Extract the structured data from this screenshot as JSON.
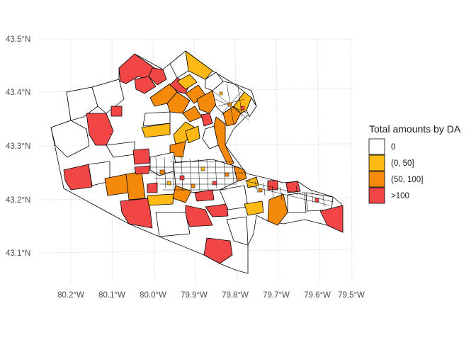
{
  "map": {
    "y_ticks": [
      "43.5°N",
      "43.4°N",
      "43.3°N",
      "43.2°N",
      "43.1°N"
    ],
    "x_ticks": [
      "80.2°W",
      "80.1°W",
      "80.0°W",
      "79.9°W",
      "79.8°W",
      "79.7°W",
      "79.6°W",
      "79.5°W"
    ]
  },
  "legend": {
    "title": "Total amounts by DA",
    "items": [
      {
        "label": "0",
        "color": "#ffffff"
      },
      {
        "label": "(0, 50]",
        "color": "#ffb914"
      },
      {
        "label": "(50, 100]",
        "color": "#f58a0a"
      },
      {
        "label": ">100",
        "color": "#f04646"
      }
    ]
  }
}
